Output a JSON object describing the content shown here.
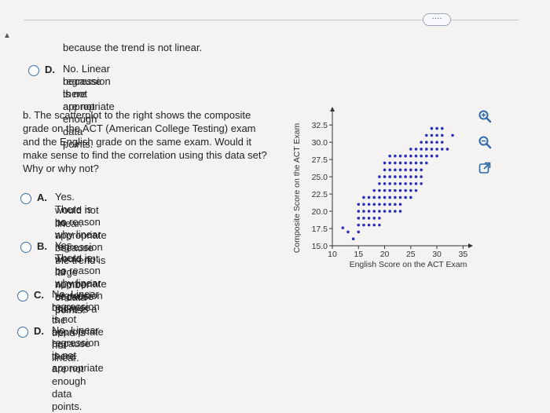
{
  "top": {
    "more_label": "····"
  },
  "prev_option_c_tail": "because the trend is not linear.",
  "prev_option_d": {
    "letter": "D.",
    "lines": [
      "No. Linear regression is not appropriate",
      "because there are not enough data points."
    ]
  },
  "question_b": {
    "lines": [
      "b. The scatterplot to the right shows the composite",
      "grade on the ACT (American College Testing) exam",
      "and the English grade on the same exam. Would it",
      "make sense to find the correlation using this data set?",
      "Why or why not?"
    ]
  },
  "options": [
    {
      "letter": "A.",
      "lines": [
        "Yes. There is no reason why linear regression",
        "would not be appropriate because the trend is",
        "linear."
      ]
    },
    {
      "letter": "B.",
      "lines": [
        "Yes. There is no reason why linear regression",
        "would not be appropriate because there is a",
        "large number of data points."
      ]
    },
    {
      "letter": "C.",
      "lines": [
        "No. Linear regression is not appropriate",
        "because the trend is not linear."
      ]
    },
    {
      "letter": "D.",
      "lines": [
        "No. Linear regression is not appropriate",
        "because there are not enough data points."
      ]
    }
  ],
  "icons": [
    "zoom-in-icon",
    "zoom-out-icon",
    "popout-icon"
  ],
  "colors": {
    "point": "#2b2fb8",
    "radio_border": "#3d6fa6"
  },
  "chart_data": {
    "type": "scatter",
    "xlabel": "English Score on the ACT Exam",
    "ylabel": "Composite Score on the ACT Exam",
    "xlim": [
      10,
      36
    ],
    "ylim": [
      15,
      34
    ],
    "xticks": [
      "10",
      "15",
      "20",
      "25",
      "30",
      "35"
    ],
    "yticks": [
      "15.0",
      "17.5",
      "20.0",
      "22.5",
      "25.0",
      "27.5",
      "30.0",
      "32.5"
    ],
    "points": [
      [
        12,
        17.6
      ],
      [
        13,
        17
      ],
      [
        14,
        16
      ],
      [
        15,
        17
      ],
      [
        15,
        18
      ],
      [
        16,
        18
      ],
      [
        17,
        18
      ],
      [
        18,
        18
      ],
      [
        19,
        18
      ],
      [
        15,
        19
      ],
      [
        16,
        19
      ],
      [
        17,
        19
      ],
      [
        18,
        19
      ],
      [
        19,
        19
      ],
      [
        15,
        20
      ],
      [
        16,
        20
      ],
      [
        17,
        20
      ],
      [
        18,
        20
      ],
      [
        19,
        20
      ],
      [
        20,
        20
      ],
      [
        21,
        20
      ],
      [
        22,
        20
      ],
      [
        23,
        20
      ],
      [
        15,
        21
      ],
      [
        16,
        21
      ],
      [
        17,
        21
      ],
      [
        18,
        21
      ],
      [
        19,
        21
      ],
      [
        20,
        21
      ],
      [
        21,
        21
      ],
      [
        22,
        21
      ],
      [
        23,
        21
      ],
      [
        16,
        22
      ],
      [
        17,
        22
      ],
      [
        18,
        22
      ],
      [
        19,
        22
      ],
      [
        20,
        22
      ],
      [
        21,
        22
      ],
      [
        22,
        22
      ],
      [
        23,
        22
      ],
      [
        24,
        22
      ],
      [
        25,
        22
      ],
      [
        18,
        23
      ],
      [
        19,
        23
      ],
      [
        20,
        23
      ],
      [
        21,
        23
      ],
      [
        22,
        23
      ],
      [
        23,
        23
      ],
      [
        24,
        23
      ],
      [
        25,
        23
      ],
      [
        26,
        23
      ],
      [
        19,
        24
      ],
      [
        20,
        24
      ],
      [
        21,
        24
      ],
      [
        22,
        24
      ],
      [
        23,
        24
      ],
      [
        24,
        24
      ],
      [
        25,
        24
      ],
      [
        26,
        24
      ],
      [
        27,
        24
      ],
      [
        19,
        25
      ],
      [
        20,
        25
      ],
      [
        21,
        25
      ],
      [
        22,
        25
      ],
      [
        23,
        25
      ],
      [
        24,
        25
      ],
      [
        25,
        25
      ],
      [
        26,
        25
      ],
      [
        27,
        25
      ],
      [
        20,
        26
      ],
      [
        21,
        26
      ],
      [
        22,
        26
      ],
      [
        23,
        26
      ],
      [
        24,
        26
      ],
      [
        25,
        26
      ],
      [
        26,
        26
      ],
      [
        27,
        26
      ],
      [
        20,
        27
      ],
      [
        21,
        27
      ],
      [
        22,
        27
      ],
      [
        23,
        27
      ],
      [
        24,
        27
      ],
      [
        25,
        27
      ],
      [
        26,
        27
      ],
      [
        27,
        27
      ],
      [
        28,
        27
      ],
      [
        21,
        28
      ],
      [
        22,
        28
      ],
      [
        23,
        28
      ],
      [
        24,
        28
      ],
      [
        25,
        28
      ],
      [
        26,
        28
      ],
      [
        27,
        28
      ],
      [
        28,
        28
      ],
      [
        29,
        28
      ],
      [
        30,
        28
      ],
      [
        25,
        29
      ],
      [
        26,
        29
      ],
      [
        27,
        29
      ],
      [
        28,
        29
      ],
      [
        29,
        29
      ],
      [
        30,
        29
      ],
      [
        31,
        29
      ],
      [
        32,
        29
      ],
      [
        27,
        30
      ],
      [
        28,
        30
      ],
      [
        29,
        30
      ],
      [
        30,
        30
      ],
      [
        31,
        30
      ],
      [
        28,
        31
      ],
      [
        29,
        31
      ],
      [
        30,
        31
      ],
      [
        31,
        31
      ],
      [
        29,
        32
      ],
      [
        30,
        32
      ],
      [
        31,
        32
      ],
      [
        33,
        31
      ]
    ]
  }
}
